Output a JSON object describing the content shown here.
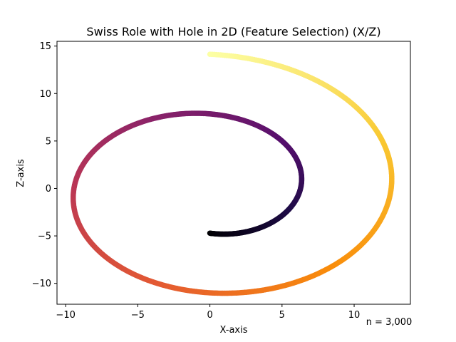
{
  "chart_data": {
    "type": "scatter",
    "title": "Swiss Role with Hole in 2D (Feature Selection) (X/Z)",
    "xlabel": "X-axis",
    "ylabel": "Z-axis",
    "xlim": [
      -10.6,
      13.9
    ],
    "ylim": [
      -12.2,
      15.5
    ],
    "x_ticks": [
      -10,
      -5,
      0,
      5,
      10
    ],
    "y_ticks": [
      -10,
      -5,
      0,
      5,
      10,
      15
    ],
    "grid": false,
    "legend": "none",
    "colormap": "inferno",
    "color_by": "t",
    "point_count_label": "n = 3,000",
    "spiral": {
      "description": "points lie on x = t*cos(t), z = t*sin(t), t ranges from first to last",
      "t_start": 4.712,
      "t_end": 14.137,
      "points": [
        {
          "t": 4.712,
          "x": 0.0,
          "z": -4.71
        },
        {
          "t": 5.498,
          "x": 3.89,
          "z": -3.89
        },
        {
          "t": 6.283,
          "x": 6.28,
          "z": 0.0
        },
        {
          "t": 7.069,
          "x": 5.0,
          "z": 5.0
        },
        {
          "t": 7.854,
          "x": 0.0,
          "z": 7.85
        },
        {
          "t": 8.639,
          "x": -6.11,
          "z": 6.11
        },
        {
          "t": 9.425,
          "x": -9.42,
          "z": 0.0
        },
        {
          "t": 10.21,
          "x": -7.22,
          "z": -7.22
        },
        {
          "t": 10.996,
          "x": 0.0,
          "z": -11.0
        },
        {
          "t": 11.781,
          "x": 8.33,
          "z": -8.33
        },
        {
          "t": 12.566,
          "x": 12.57,
          "z": 0.0
        },
        {
          "t": 13.352,
          "x": 9.44,
          "z": 9.44
        },
        {
          "t": 14.137,
          "x": 0.0,
          "z": 14.14
        }
      ]
    }
  }
}
